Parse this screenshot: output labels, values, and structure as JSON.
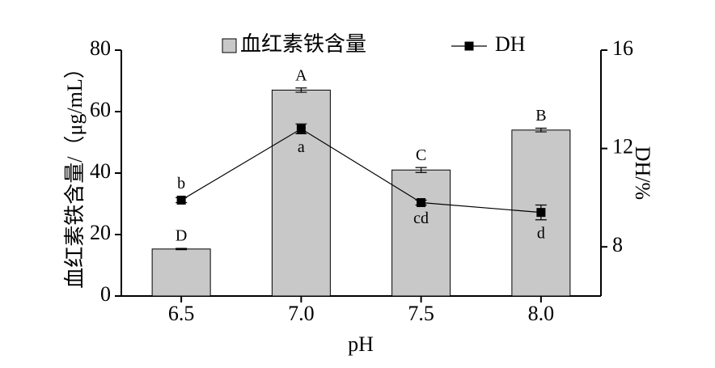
{
  "chart_data": {
    "type": "bar-line",
    "x_label": "pH",
    "y_label": "血红素铁含量/（μg/mL）",
    "y2_label": "DH/%",
    "categories": [
      "6.5",
      "7.0",
      "7.5",
      "8.0"
    ],
    "ylim": [
      0,
      80
    ],
    "yticks": [
      0,
      20,
      40,
      60,
      80
    ],
    "y2lim": [
      6,
      16
    ],
    "y2ticks": [
      8,
      12,
      16
    ],
    "legend": "top",
    "series": [
      {
        "name": "血红素铁含量",
        "type": "bar",
        "color": "#c8c8c8",
        "values": [
          15.3,
          67,
          41,
          54
        ],
        "errors": [
          0.2,
          0.7,
          0.8,
          0.6
        ],
        "annotations": [
          "D",
          "A",
          "C",
          "B"
        ]
      },
      {
        "name": "DH",
        "type": "line",
        "axis": "y2",
        "color": "#000000",
        "values": [
          9.9,
          12.8,
          9.8,
          9.4
        ],
        "errors": [
          0.1,
          0.2,
          0.1,
          0.3
        ],
        "annotations": [
          "b",
          "a",
          "cd",
          "d"
        ]
      }
    ]
  }
}
